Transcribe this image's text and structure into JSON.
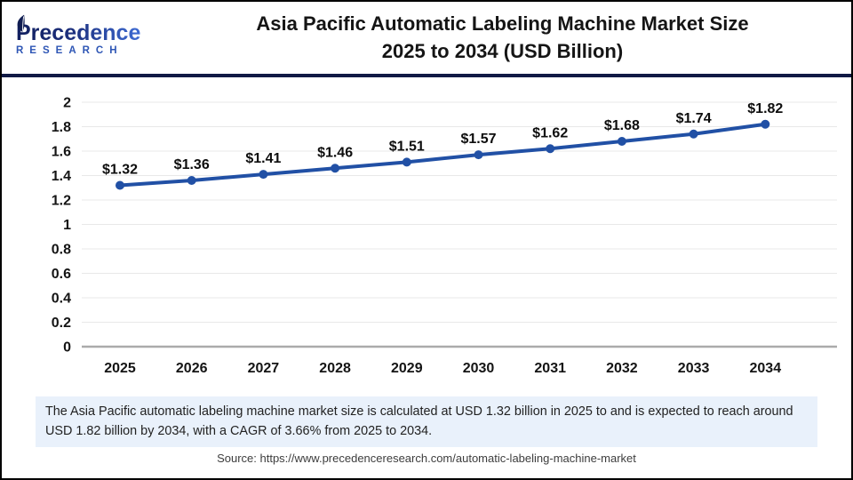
{
  "header": {
    "logo_line1": "Precedence",
    "logo_line2": "RESEARCH",
    "title_line1": "Asia Pacific Automatic Labeling Machine Market Size",
    "title_line2": "2025 to 2034 (USD Billion)"
  },
  "chart_data": {
    "type": "line",
    "title": "Asia Pacific Automatic Labeling Machine Market Size 2025 to 2034 (USD Billion)",
    "categories": [
      "2025",
      "2026",
      "2027",
      "2028",
      "2029",
      "2030",
      "2031",
      "2032",
      "2033",
      "2034"
    ],
    "values": [
      1.32,
      1.36,
      1.41,
      1.46,
      1.51,
      1.57,
      1.62,
      1.68,
      1.74,
      1.82
    ],
    "labels": [
      "$1.32",
      "$1.36",
      "$1.41",
      "$1.46",
      "$1.51",
      "$1.57",
      "$1.62",
      "$1.68",
      "$1.74",
      "$1.82"
    ],
    "xlabel": "",
    "ylabel": "",
    "ylim": [
      0,
      2
    ],
    "ytick_step": 0.2,
    "yticks": [
      "0",
      "0.2",
      "0.4",
      "0.6",
      "0.8",
      "1",
      "1.2",
      "1.4",
      "1.6",
      "1.8",
      "2"
    ],
    "grid": true,
    "legend": "none",
    "line_color": "#2150a5",
    "marker": "circle"
  },
  "note": {
    "text": "The Asia Pacific automatic labeling machine market size is calculated at USD 1.32 billion in 2025 to and is expected to reach around USD 1.82 billion by 2034, with a CAGR of 3.66% from 2025 to 2034."
  },
  "source": {
    "text": "Source: https://www.precedenceresearch.com/automatic-labeling-machine-market"
  },
  "colors": {
    "divider_navy": "#101a45",
    "line_blue": "#2150a5",
    "note_bg": "#e9f1fb",
    "grid_gray": "#e8e8e8",
    "zero_axis_gray": "#ababab"
  }
}
